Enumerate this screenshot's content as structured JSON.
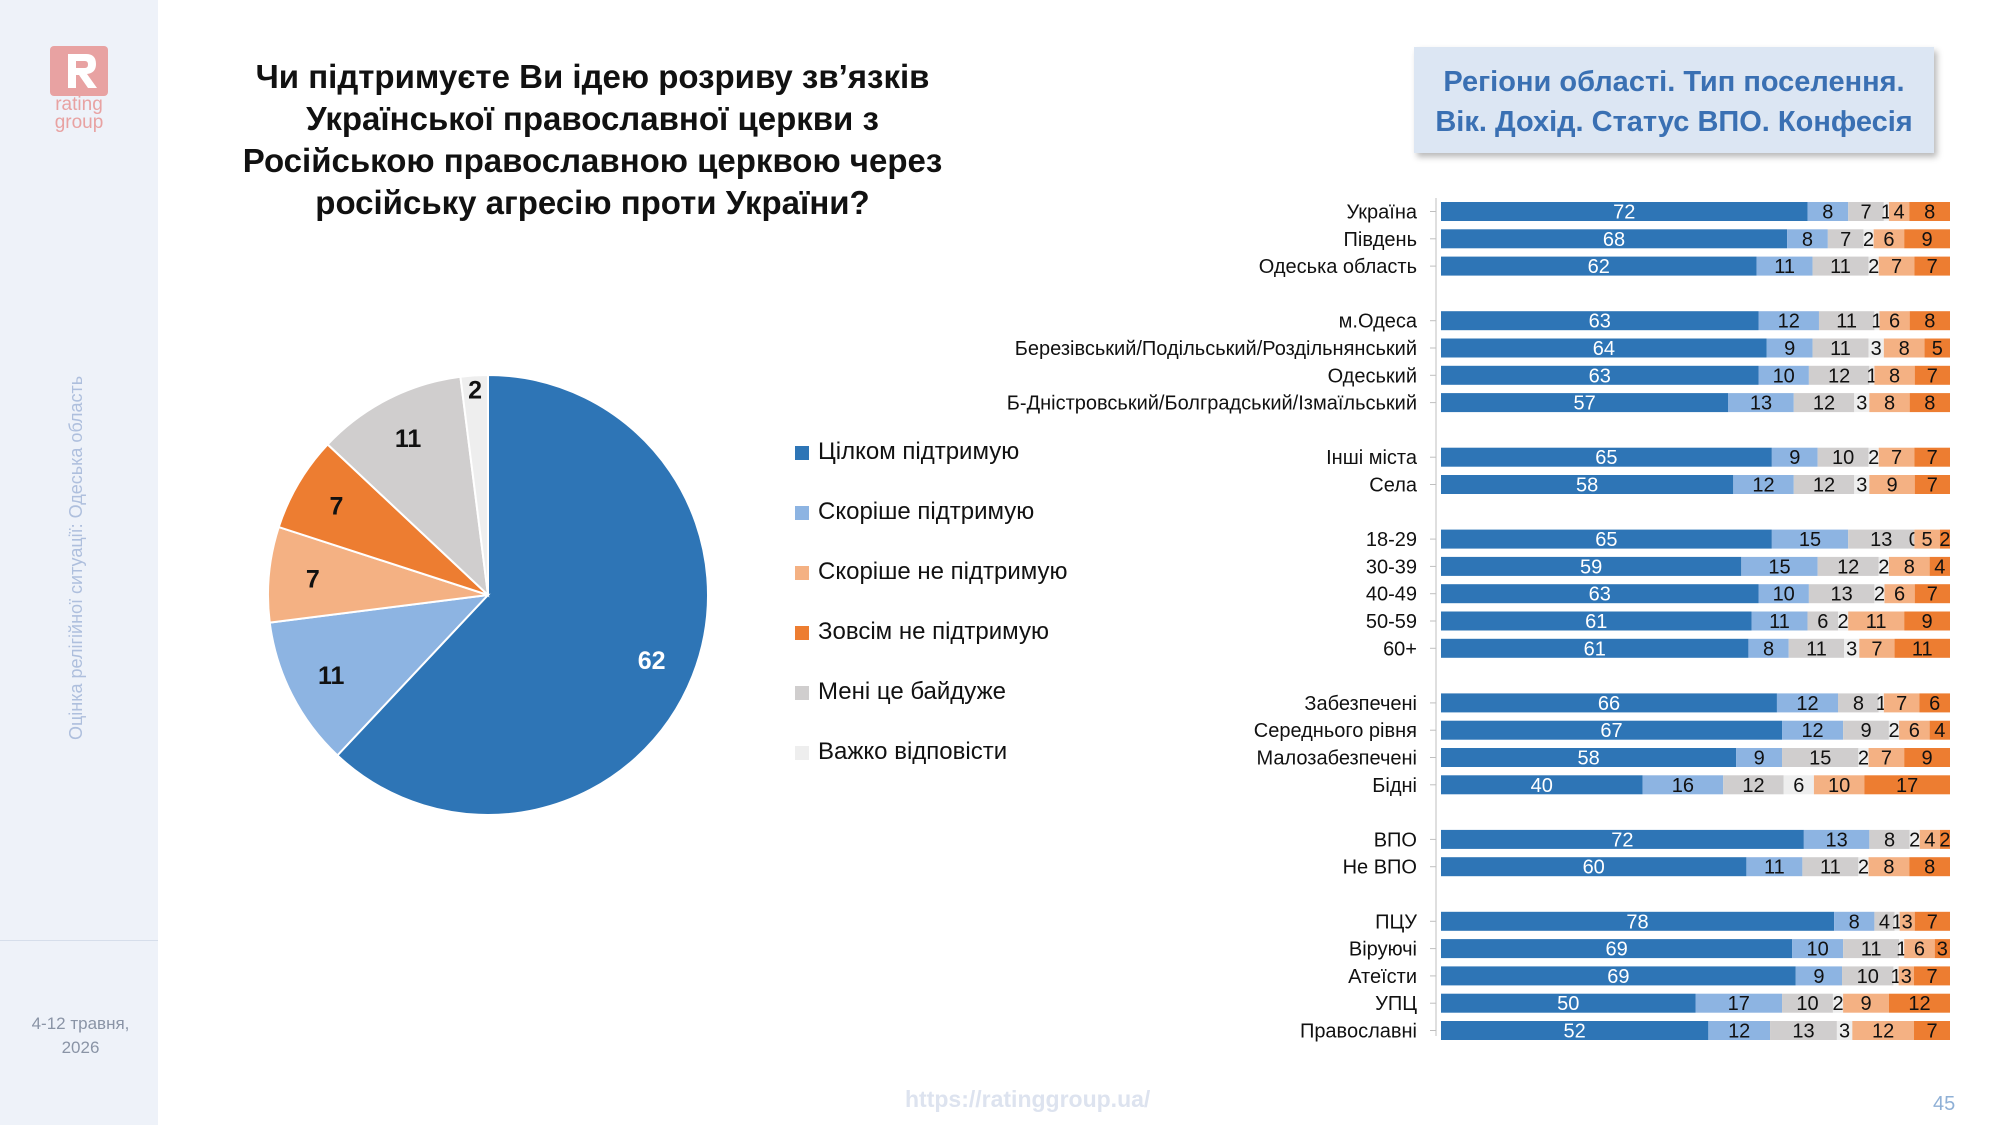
{
  "sidebar": {
    "logo_text_1": "rating",
    "logo_text_2": "group",
    "vertical_text": "Оцінка релігійної ситуації: Одеська область",
    "date_line_1": "4-12 травня,",
    "date_line_2": "2026"
  },
  "title": "Чи підтримуєте Ви ідею розриву зв’язків Української православної церкви з Російською православною церквою через російську агресію проти України?",
  "tagbox": {
    "line1": "Регіони області. Тип поселення.",
    "line2": "Вік. Дохід. Статус ВПО. Конфесія"
  },
  "footer": {
    "url": "https://ratinggroup.ua/",
    "page": "45"
  },
  "colors": {
    "full_support": "#2e75b6",
    "rather_support": "#8db4e2",
    "rather_not": "#f4b183",
    "not_at_all": "#ed7d31",
    "indifferent": "#d0cece",
    "hard_to_say": "#eeeeee"
  },
  "chart_data": [
    {
      "type": "pie",
      "slices": [
        {
          "label": "Цілком підтримую",
          "value": 62
        },
        {
          "label": "Скоріше підтримую",
          "value": 11
        },
        {
          "label": "Скоріше не підтримую",
          "value": 7
        },
        {
          "label": "Зовсім не підтримую",
          "value": 7
        },
        {
          "label": "Мені це байдуже",
          "value": 11
        },
        {
          "label": "Важко відповісти",
          "value": 2
        }
      ]
    },
    {
      "type": "bar",
      "orientation": "horizontal",
      "stacked": true,
      "series": [
        {
          "name": "Цілком підтримую"
        },
        {
          "name": "Скоріше підтримую"
        },
        {
          "name": "Мені це байдуже"
        },
        {
          "name": "Важко відповісти"
        },
        {
          "name": "Скоріше не підтримую"
        },
        {
          "name": "Зовсім не підтримую"
        }
      ],
      "groups": [
        [
          {
            "label": "Україна",
            "values": [
              72,
              8,
              7,
              1,
              4,
              8
            ]
          },
          {
            "label": "Південь",
            "values": [
              68,
              8,
              7,
              2,
              6,
              9
            ]
          },
          {
            "label": "Одеська область",
            "values": [
              62,
              11,
              11,
              2,
              7,
              7
            ]
          }
        ],
        [
          {
            "label": "м.Одеса",
            "values": [
              63,
              12,
              11,
              1,
              6,
              8
            ]
          },
          {
            "label": "Березівський/Подільський/Роздільнянський",
            "values": [
              64,
              9,
              11,
              3,
              8,
              5
            ]
          },
          {
            "label": "Одеський",
            "values": [
              63,
              10,
              12,
              1,
              8,
              7
            ]
          },
          {
            "label": "Б-Дністровський/Болградський/Ізмаїльський",
            "values": [
              57,
              13,
              12,
              3,
              8,
              8
            ]
          }
        ],
        [
          {
            "label": "Інші міста",
            "values": [
              65,
              9,
              10,
              2,
              7,
              7
            ]
          },
          {
            "label": "Села",
            "values": [
              58,
              12,
              12,
              3,
              9,
              7
            ]
          }
        ],
        [
          {
            "label": "18-29",
            "values": [
              65,
              15,
              13,
              0,
              5,
              2
            ]
          },
          {
            "label": "30-39",
            "values": [
              59,
              15,
              12,
              2,
              8,
              4
            ]
          },
          {
            "label": "40-49",
            "values": [
              63,
              10,
              13,
              2,
              6,
              7
            ]
          },
          {
            "label": "50-59",
            "values": [
              61,
              11,
              6,
              2,
              11,
              9
            ]
          },
          {
            "label": "60+",
            "values": [
              61,
              8,
              11,
              3,
              7,
              11
            ]
          }
        ],
        [
          {
            "label": "Забезпечені",
            "values": [
              66,
              12,
              8,
              1,
              7,
              6
            ]
          },
          {
            "label": "Середнього рівня",
            "values": [
              67,
              12,
              9,
              2,
              6,
              4
            ]
          },
          {
            "label": "Малозабезпечені",
            "values": [
              58,
              9,
              15,
              2,
              7,
              9
            ]
          },
          {
            "label": "Бідні",
            "values": [
              40,
              16,
              12,
              6,
              10,
              17
            ]
          }
        ],
        [
          {
            "label": "ВПО",
            "values": [
              72,
              13,
              8,
              2,
              4,
              2
            ]
          },
          {
            "label": "Не ВПО",
            "values": [
              60,
              11,
              11,
              2,
              8,
              8
            ]
          }
        ],
        [
          {
            "label": "ПЦУ",
            "values": [
              78,
              8,
              4,
              1,
              3,
              7
            ]
          },
          {
            "label": "Віруючі",
            "values": [
              69,
              10,
              11,
              1,
              6,
              3
            ]
          },
          {
            "label": "Атеїсти",
            "values": [
              69,
              9,
              10,
              1,
              3,
              7
            ]
          },
          {
            "label": "УПЦ",
            "values": [
              50,
              17,
              10,
              2,
              9,
              12
            ]
          },
          {
            "label": "Православні",
            "values": [
              52,
              12,
              13,
              3,
              12,
              7
            ]
          }
        ]
      ]
    }
  ]
}
